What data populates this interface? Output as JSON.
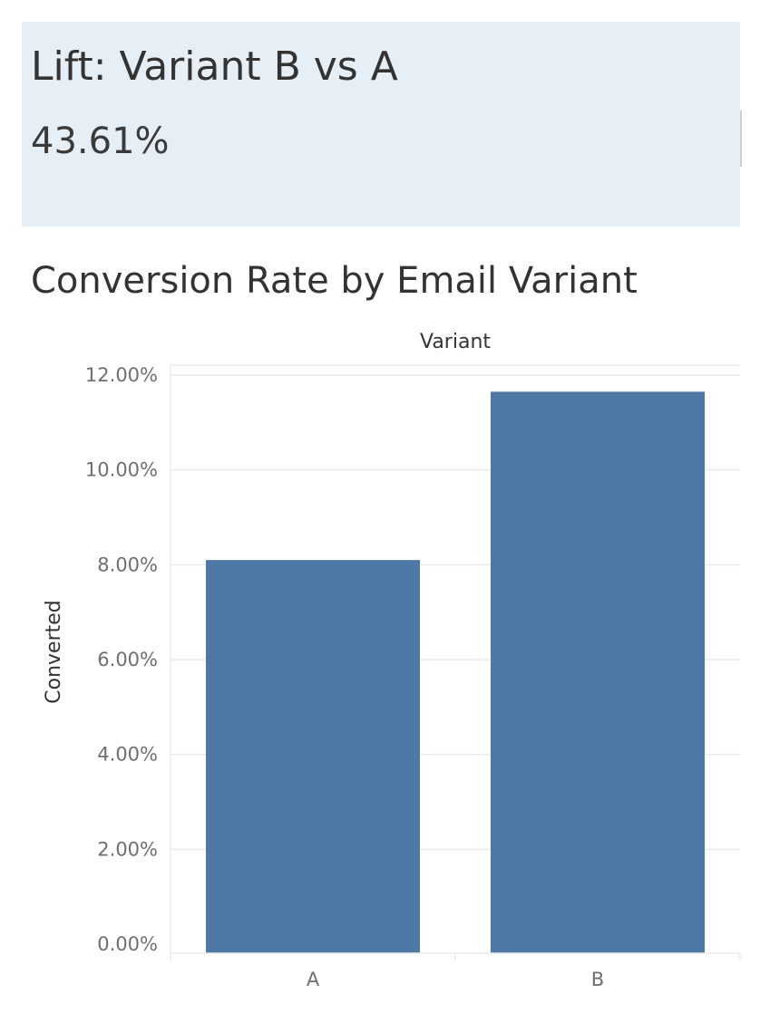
{
  "kpi": {
    "title": "Lift: Variant B vs A",
    "value": "43.61%"
  },
  "chart_data": {
    "type": "bar",
    "title": "Conversion Rate by Email Variant",
    "column_header": "Variant",
    "xlabel": "",
    "ylabel": "Converted",
    "categories": [
      "A",
      "B"
    ],
    "values": [
      8.1,
      11.65
    ],
    "ylim": [
      0,
      12.2
    ],
    "y_ticks": [
      {
        "value": 0,
        "label": "0.00%"
      },
      {
        "value": 2,
        "label": "2.00%"
      },
      {
        "value": 4,
        "label": "4.00%"
      },
      {
        "value": 6,
        "label": "6.00%"
      },
      {
        "value": 8,
        "label": "8.00%"
      },
      {
        "value": 10,
        "label": "10.00%"
      },
      {
        "value": 12,
        "label": "12.00%"
      }
    ],
    "grid": true,
    "bar_color": "#4e79a7"
  },
  "colors": {
    "kpi_background": "#e6eff5",
    "gridline": "#ebebeb",
    "text_dark": "#333333",
    "tick_text": "#6f6f6f"
  }
}
